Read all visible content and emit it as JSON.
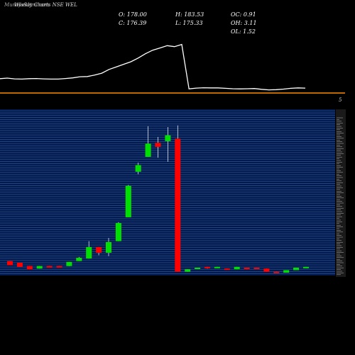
{
  "brand": "MunafaSutra.com",
  "subtitle": "Weekly Charts NSE WEL",
  "stats": {
    "open": "O: 178.00",
    "close": "C: 176.39",
    "high": "H: 183.53",
    "low": "L: 175.33",
    "oc": "OC: 0.91",
    "oh": "OH: 3.11",
    "ol": "OL: 1.52"
  },
  "colors": {
    "up": "#00e000",
    "down": "#ff0000",
    "volume_line": "#ffffff",
    "separator": "#ff8800",
    "panel_bg": "#001a4d",
    "grid": "#3a5a99",
    "wick": "#ffffff"
  },
  "chart_data": {
    "type": "candlestick",
    "indicator_line": [
      0.62,
      0.65,
      0.61,
      0.6,
      0.62,
      0.63,
      0.61,
      0.6,
      0.6,
      0.63,
      0.66,
      0.72,
      0.73,
      0.8,
      0.9,
      1.09,
      1.22,
      1.35,
      1.48,
      1.67,
      1.89,
      2.07,
      2.18,
      2.3,
      2.25,
      2.36,
      0.1,
      0.14,
      0.16,
      0.15,
      0.15,
      0.13,
      0.11,
      0.1,
      0.11,
      0.12,
      0.08,
      0.05,
      0.06,
      0.09,
      0.13,
      0.15,
      0.14
    ],
    "candles": [
      {
        "open": 14,
        "close": 9,
        "high": 14,
        "low": 9
      },
      {
        "open": 12,
        "close": 7,
        "high": 12,
        "low": 7
      },
      {
        "open": 8,
        "close": 4,
        "high": 8,
        "low": 4
      },
      {
        "open": 5,
        "close": 8,
        "high": 8,
        "low": 5
      },
      {
        "open": 8,
        "close": 6,
        "high": 8,
        "low": 6
      },
      {
        "open": 8,
        "close": 6,
        "high": 8,
        "low": 6
      },
      {
        "open": 8,
        "close": 13,
        "high": 13,
        "low": 8
      },
      {
        "open": 14,
        "close": 18,
        "high": 19,
        "low": 14
      },
      {
        "open": 17,
        "close": 31,
        "high": 38,
        "low": 17
      },
      {
        "open": 31,
        "close": 24,
        "high": 31,
        "low": 21
      },
      {
        "open": 24,
        "close": 37,
        "high": 42,
        "low": 20
      },
      {
        "open": 38,
        "close": 60,
        "high": 61,
        "low": 38
      },
      {
        "open": 67,
        "close": 105,
        "high": 106,
        "low": 67
      },
      {
        "open": 122,
        "close": 130,
        "high": 133,
        "low": 119
      },
      {
        "open": 140,
        "close": 156,
        "high": 177,
        "low": 140
      },
      {
        "open": 157,
        "close": 152,
        "high": 164,
        "low": 139
      },
      {
        "open": 159,
        "close": 166,
        "high": 176,
        "low": 134
      },
      {
        "open": 162,
        "close": 1,
        "high": 178,
        "low": 1
      },
      {
        "open": 1,
        "close": 4,
        "high": 4,
        "low": 1
      },
      {
        "open": 5,
        "close": 6,
        "high": 6,
        "low": 5
      },
      {
        "open": 7,
        "close": 6,
        "high": 7,
        "low": 5
      },
      {
        "open": 6,
        "close": 7,
        "high": 7,
        "low": 6
      },
      {
        "open": 5,
        "close": 4,
        "high": 5,
        "low": 4
      },
      {
        "open": 4,
        "close": 7,
        "high": 7,
        "low": 4
      },
      {
        "open": 6,
        "close": 4,
        "high": 6,
        "low": 4
      },
      {
        "open": 6,
        "close": 5,
        "high": 6,
        "low": 5
      },
      {
        "open": 5,
        "close": 1,
        "high": 5,
        "low": 1
      },
      {
        "open": 1,
        "close": 0,
        "high": 0,
        "low": 0
      },
      {
        "open": 0,
        "close": 3,
        "high": 3,
        "low": 0
      },
      {
        "open": 3,
        "close": 6,
        "high": 6,
        "low": 3
      },
      {
        "open": 6,
        "close": 7,
        "high": 7,
        "low": 6
      }
    ],
    "ylim": [
      0,
      200
    ],
    "indicator_ylim": [
      0,
      2.6
    ],
    "grid": true,
    "ytick_labels": [
      "5"
    ]
  }
}
